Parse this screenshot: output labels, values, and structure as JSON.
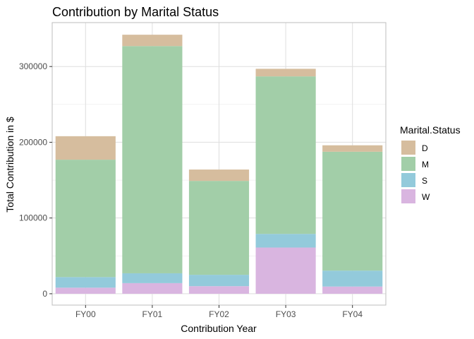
{
  "chart_data": {
    "type": "bar",
    "stacked": true,
    "title": "Contribution by Marital Status",
    "xlabel": "Contribution Year",
    "ylabel": "Total Contribution in $",
    "categories": [
      "FY00",
      "FY01",
      "FY02",
      "FY03",
      "FY04"
    ],
    "ylim": [
      -15000,
      358000
    ],
    "yticks": [
      0,
      100000,
      200000,
      300000
    ],
    "ytick_labels": [
      "0",
      "100000",
      "200000",
      "300000"
    ],
    "grid": true,
    "legend": {
      "title": "Marital.Status",
      "position": "right"
    },
    "series": [
      {
        "name": "W",
        "color": "#d9b5e0",
        "values": [
          8000,
          14000,
          10000,
          61000,
          9500
        ]
      },
      {
        "name": "S",
        "color": "#93cadb",
        "values": [
          14000,
          13000,
          15000,
          18000,
          21000
        ]
      },
      {
        "name": "M",
        "color": "#a2cea8",
        "values": [
          155000,
          300000,
          124000,
          208000,
          157000
        ]
      },
      {
        "name": "D",
        "color": "#d6bd9e",
        "values": [
          31000,
          15000,
          15000,
          10000,
          8500
        ]
      }
    ]
  }
}
